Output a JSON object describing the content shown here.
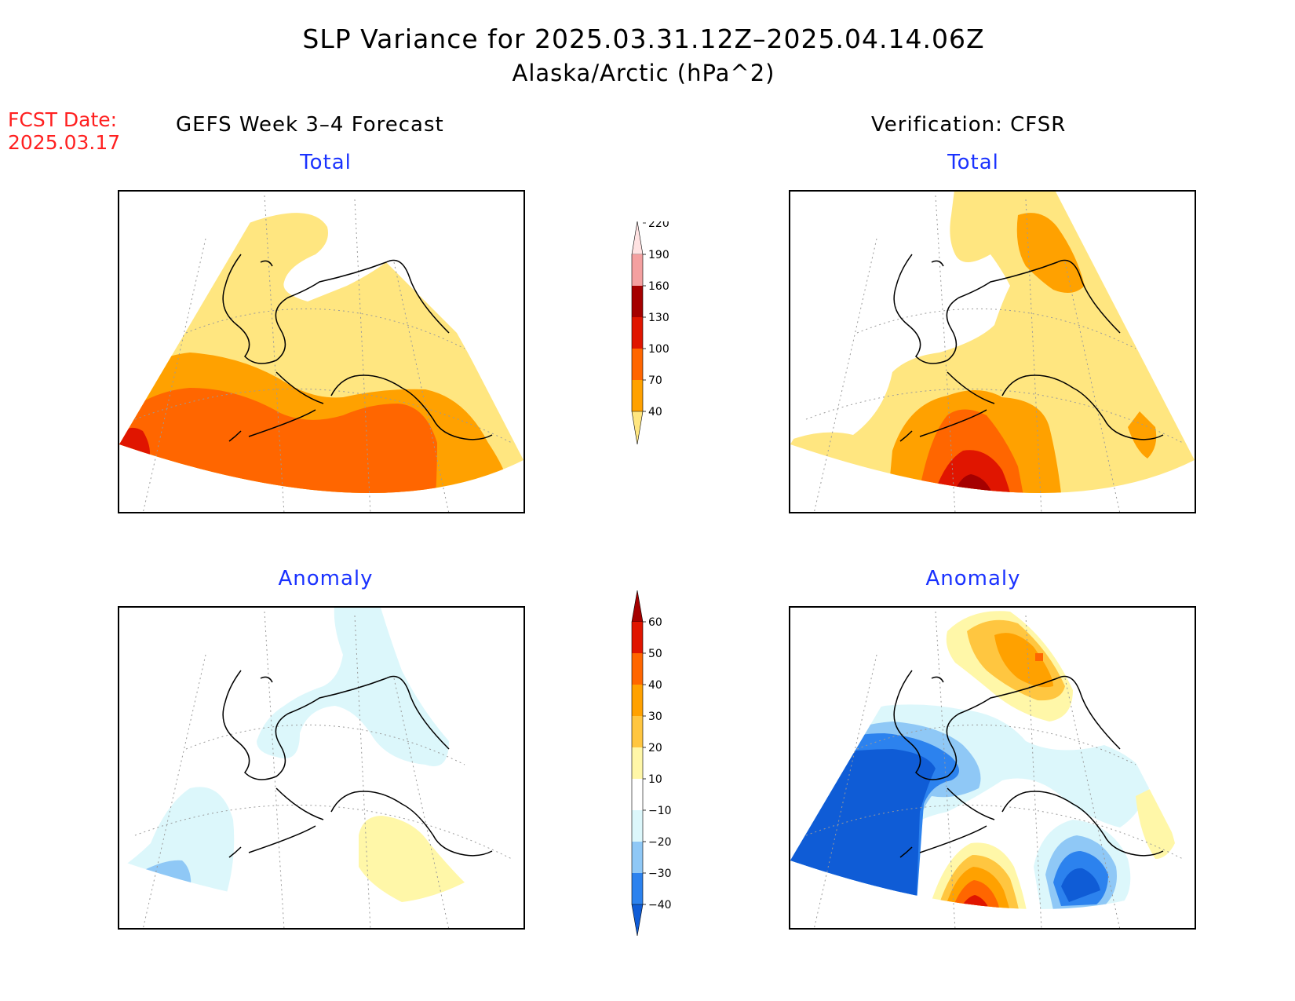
{
  "title": {
    "line1": "SLP Variance for 2025.03.31.12Z–2025.04.14.06Z",
    "line2": "Alaska/Arctic (hPa^2)"
  },
  "forecast_date": {
    "label": "FCST Date:",
    "value": "2025.03.17"
  },
  "columns": {
    "left": "GEFS Week 3–4 Forecast",
    "right": "Verification: CFSR"
  },
  "panels": {
    "forecast_total": {
      "title": "Total"
    },
    "verification_total": {
      "title": "Total"
    },
    "forecast_anomaly": {
      "title": "Anomaly"
    },
    "verification_anomaly": {
      "title": "Anomaly"
    }
  },
  "colors": {
    "land_outline": "#000000",
    "grid": "#aaaaaa",
    "title_blue": "#1a32ff",
    "fcst_red": "#ff2020"
  },
  "chart_data": [
    {
      "type": "heatmap",
      "name": "total_colorbar",
      "levels": [
        40,
        70,
        100,
        130,
        160,
        190,
        220
      ],
      "colors": [
        "#ffe680",
        "#ffa100",
        "#ff6600",
        "#e01500",
        "#a50000",
        "#f4a0a0",
        "#ffe2e2"
      ]
    },
    {
      "type": "heatmap",
      "name": "anomaly_colorbar",
      "levels": [
        -40,
        -30,
        -20,
        -10,
        10,
        20,
        30,
        40,
        50,
        60
      ],
      "colors": [
        "#0f5cd6",
        "#2c82ee",
        "#8fc8f6",
        "#dcf7fb",
        "#ffffff",
        "#fff7a8",
        "#ffc640",
        "#ffa100",
        "#ff6600",
        "#e01500",
        "#a50000"
      ]
    }
  ]
}
